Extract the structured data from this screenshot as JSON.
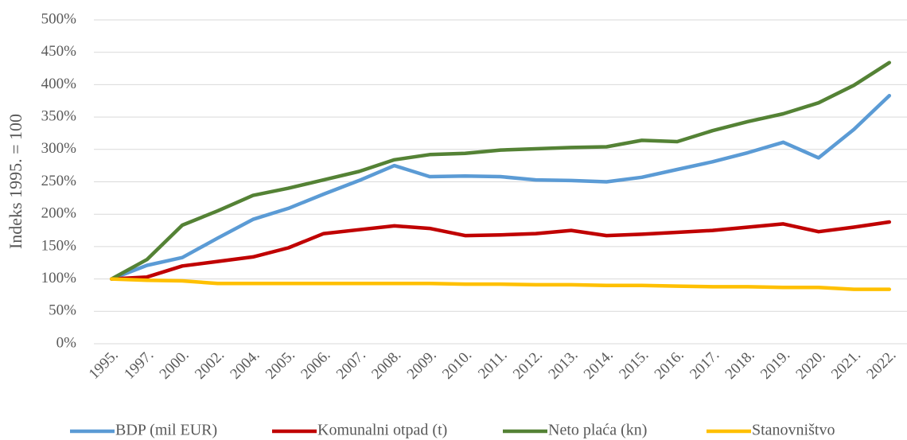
{
  "chart_data": {
    "type": "line",
    "y_label": "Indeks 1995. = 100",
    "categories": [
      "1995.",
      "1997.",
      "2000.",
      "2002.",
      "2004.",
      "2005.",
      "2006.",
      "2007.",
      "2008.",
      "2009.",
      "2010.",
      "2011.",
      "2012.",
      "2013.",
      "2014.",
      "2015.",
      "2016.",
      "2017.",
      "2018.",
      "2019.",
      "2020.",
      "2021.",
      "2022."
    ],
    "series": [
      {
        "name": "BDP (mil EUR)",
        "color": "#5b9bd5",
        "values": [
          100,
          121,
          133,
          163,
          192,
          209,
          231,
          252,
          275,
          258,
          259,
          258,
          253,
          252,
          250,
          257,
          269,
          281,
          295,
          311,
          287,
          331,
          383
        ]
      },
      {
        "name": "Komunalni otpad (t)",
        "color": "#c00000",
        "values": [
          100,
          103,
          120,
          127,
          134,
          148,
          170,
          176,
          182,
          178,
          167,
          168,
          170,
          175,
          167,
          169,
          172,
          175,
          180,
          185,
          173,
          180,
          188
        ]
      },
      {
        "name": "Neto plaća (kn)",
        "color": "#548235",
        "values": [
          100,
          130,
          183,
          205,
          229,
          240,
          253,
          266,
          284,
          292,
          294,
          299,
          301,
          303,
          304,
          314,
          312,
          329,
          343,
          355,
          372,
          399,
          434
        ]
      },
      {
        "name": "Stanovništvo",
        "color": "#ffc000",
        "values": [
          100,
          98,
          97,
          93,
          93,
          93,
          93,
          93,
          93,
          93,
          92,
          92,
          91,
          91,
          90,
          90,
          89,
          88,
          88,
          87,
          87,
          84,
          84
        ]
      }
    ],
    "ylim": [
      0,
      500
    ],
    "yticks": [
      {
        "value": 0,
        "label": "0%"
      },
      {
        "value": 50,
        "label": "50%"
      },
      {
        "value": 100,
        "label": "100%"
      },
      {
        "value": 150,
        "label": "150%"
      },
      {
        "value": 200,
        "label": "200%"
      },
      {
        "value": 250,
        "label": "250%"
      },
      {
        "value": 300,
        "label": "300%"
      },
      {
        "value": 350,
        "label": "350%"
      },
      {
        "value": 400,
        "label": "400%"
      },
      {
        "value": 450,
        "label": "450%"
      },
      {
        "value": 500,
        "label": "500%"
      }
    ],
    "grid": true,
    "legend": "bottom"
  }
}
